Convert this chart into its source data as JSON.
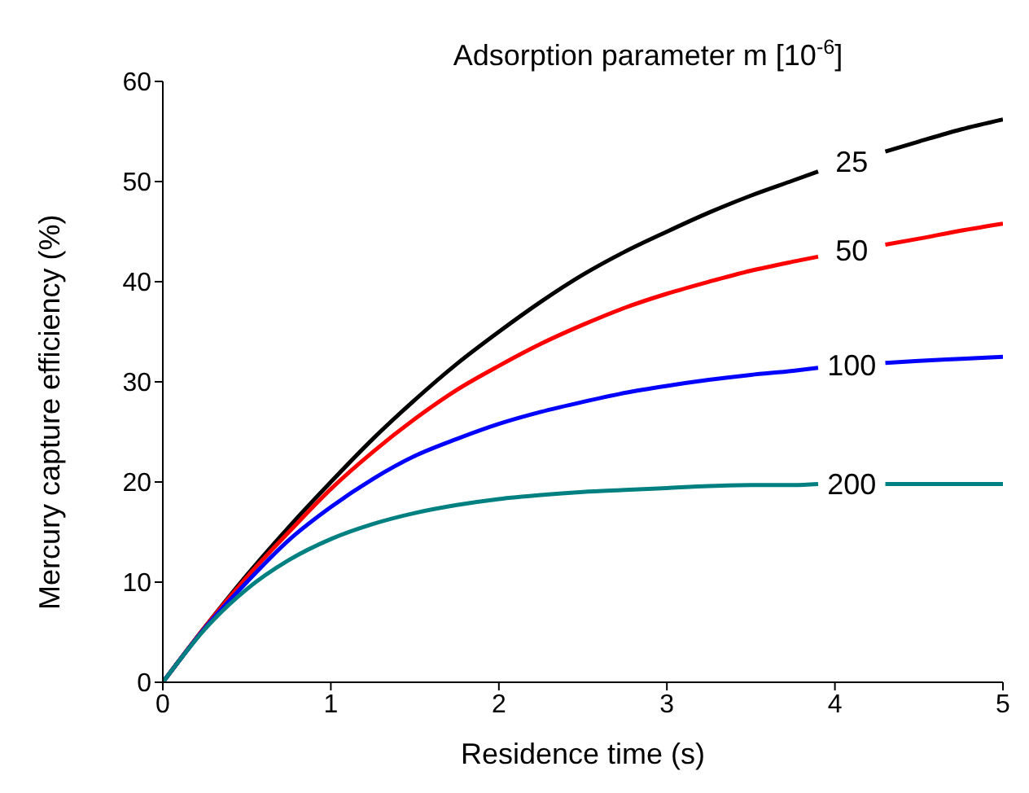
{
  "chart_data": {
    "type": "line",
    "xlabel": "Residence time (s)",
    "ylabel": "Mercury capture efficiency (%)",
    "legend_title": "Adsorption parameter m [10$^{-6}$]",
    "legend": false,
    "grid": false,
    "marker": "none",
    "line_style": "solid",
    "x": [
      0,
      0.25,
      0.5,
      0.75,
      1,
      1.25,
      1.5,
      1.75,
      2,
      2.25,
      2.5,
      2.75,
      3,
      3.25,
      3.5,
      3.75,
      3.9,
      4.1,
      4.3,
      4.5,
      4.75,
      5
    ],
    "xlim": [
      0,
      5
    ],
    "xticks": [
      0,
      1,
      2,
      3,
      4,
      5
    ],
    "ylim": [
      0,
      60
    ],
    "yticks": [
      0,
      10,
      20,
      30,
      40,
      50,
      60
    ],
    "series": [
      {
        "name": "25",
        "color": "#000000",
        "values": [
          0,
          5.5,
          10.7,
          15.5,
          20,
          24.3,
          28.2,
          31.8,
          35,
          38,
          40.7,
          43,
          45,
          46.9,
          48.6,
          50.1,
          51,
          null,
          53,
          54,
          55.2,
          56.2
        ]
      },
      {
        "name": "50",
        "color": "#ff0000",
        "values": [
          0,
          5.5,
          10.5,
          15,
          19.3,
          23,
          26.3,
          29.2,
          31.6,
          33.8,
          35.7,
          37.4,
          38.8,
          40,
          41.1,
          42,
          42.5,
          null,
          43.7,
          44.3,
          45.1,
          45.8
        ]
      },
      {
        "name": "100",
        "color": "#0000ff",
        "values": [
          0,
          5.4,
          10,
          14.2,
          17.5,
          20.3,
          22.6,
          24.3,
          25.8,
          27,
          28,
          28.9,
          29.6,
          30.2,
          30.7,
          31.1,
          31.4,
          null,
          31.9,
          32.1,
          32.3,
          32.5
        ]
      },
      {
        "name": "200",
        "color": "#008080",
        "values": [
          0,
          5.3,
          9.3,
          12.2,
          14.3,
          15.8,
          16.9,
          17.7,
          18.3,
          18.7,
          19,
          19.2,
          19.4,
          19.6,
          19.7,
          19.7,
          19.8,
          null,
          19.8,
          19.8,
          19.8,
          19.8
        ]
      }
    ]
  }
}
